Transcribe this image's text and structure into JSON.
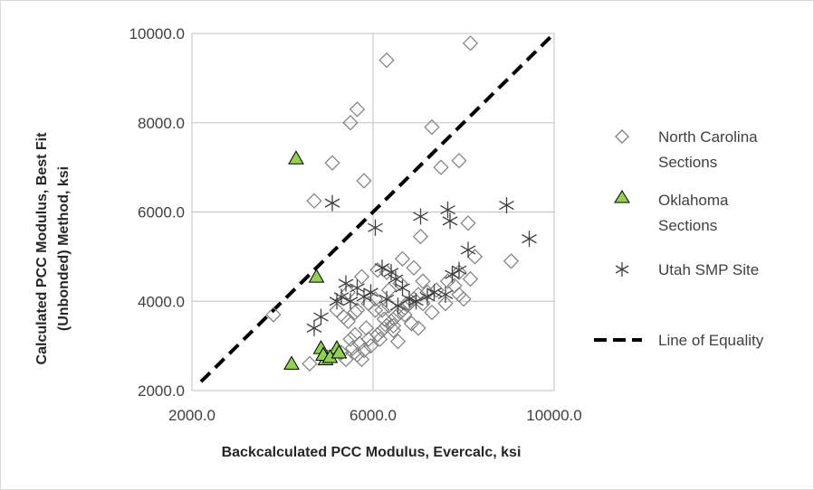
{
  "chart_data": {
    "type": "scatter",
    "xlabel": "Backcalculated PCC Modulus, Evercalc, ksi",
    "ylabel_lines": [
      "Calculated PCC Modulus, Best Fit",
      "(Unbonded) Method, ksi"
    ],
    "xlim": [
      2000,
      10000
    ],
    "ylim": [
      2000,
      10000
    ],
    "x_ticks": [
      "2000.0",
      "6000.0",
      "10000.0"
    ],
    "y_ticks": [
      "2000.0",
      "4000.0",
      "6000.0",
      "8000.0",
      "10000.0"
    ],
    "x_tick_values": [
      2000,
      6000,
      10000
    ],
    "y_tick_values": [
      2000,
      4000,
      6000,
      8000,
      10000
    ],
    "grid": true,
    "legend_position": "right",
    "series": [
      {
        "name_lines": [
          "North Carolina",
          "Sections"
        ],
        "marker": "diamond",
        "color": "#7f7f7f",
        "x": [
          6300,
          8150,
          5650,
          5500,
          7300,
          7900,
          5100,
          7500,
          5800,
          4700,
          7050,
          8100,
          6650,
          6100,
          5750,
          6900,
          6300,
          7100,
          7650,
          7900,
          8250,
          9050,
          8150,
          6600,
          6350,
          5450,
          6050,
          5900,
          5650,
          5600,
          5200,
          5350,
          5450,
          3800,
          4600,
          5000,
          5300,
          5550,
          5700,
          5900,
          6100,
          6200,
          6300,
          6400,
          6500,
          6600,
          6700,
          6800,
          6900,
          7000,
          7200,
          7400,
          7800,
          8000,
          6250,
          6450,
          6150,
          5950,
          5800,
          5650,
          7000,
          6550,
          6050,
          5850,
          5600,
          5500,
          5400,
          6700,
          7300,
          7600,
          7900,
          6350,
          6850,
          6100,
          6750,
          6450,
          7100,
          5750,
          6200
        ],
        "y": [
          9400,
          9780,
          8300,
          8000,
          7900,
          7150,
          7100,
          7000,
          6700,
          6250,
          5450,
          5750,
          4950,
          4700,
          4550,
          4750,
          4650,
          4450,
          4450,
          4650,
          5000,
          4900,
          4500,
          4400,
          4250,
          4200,
          4050,
          3950,
          3800,
          3750,
          3800,
          3650,
          3550,
          3700,
          2600,
          2750,
          2850,
          2950,
          3050,
          3150,
          3250,
          3350,
          3450,
          3550,
          3650,
          3750,
          3850,
          3950,
          4050,
          4150,
          4200,
          4250,
          4350,
          4050,
          3600,
          3450,
          3150,
          3000,
          2900,
          2800,
          3400,
          3100,
          3800,
          3400,
          3250,
          3150,
          2700,
          3700,
          3750,
          3950,
          4150,
          3900,
          3500,
          3250,
          3950,
          3350,
          3950,
          2700,
          3800
        ]
      },
      {
        "name_lines": [
          "Oklahoma",
          "Sections"
        ],
        "marker": "triangle",
        "color": "#92d050",
        "x": [
          4300,
          4750,
          4200,
          4850,
          4950,
          5200,
          4900,
          5050,
          5250
        ],
        "y": [
          7200,
          4550,
          2600,
          2950,
          2700,
          2950,
          2800,
          2750,
          2850
        ]
      },
      {
        "name_lines": [
          "Utah SMP Site"
        ],
        "marker": "asterisk",
        "color": "#404040",
        "x": [
          5100,
          6050,
          7050,
          7650,
          7700,
          8950,
          9450,
          8100,
          7900,
          6400,
          6200,
          5400,
          5650,
          5800,
          5200,
          4850,
          4700,
          6500,
          6650,
          6800,
          7200,
          7350,
          7600,
          7750,
          6300,
          6550,
          6950,
          5950,
          5500,
          5300
        ],
        "y": [
          6200,
          5650,
          5900,
          6050,
          5800,
          6150,
          5400,
          5150,
          4700,
          4650,
          4750,
          4400,
          4300,
          4100,
          4000,
          3650,
          3400,
          4500,
          4300,
          4050,
          4100,
          4200,
          4150,
          4600,
          4050,
          3900,
          4000,
          4200,
          4000,
          4100
        ]
      },
      {
        "name_lines": [
          "Line of Equality"
        ],
        "type": "line",
        "style": "dashed",
        "color": "#000000",
        "x": [
          2200,
          10000
        ],
        "y": [
          2200,
          10000
        ]
      }
    ]
  }
}
